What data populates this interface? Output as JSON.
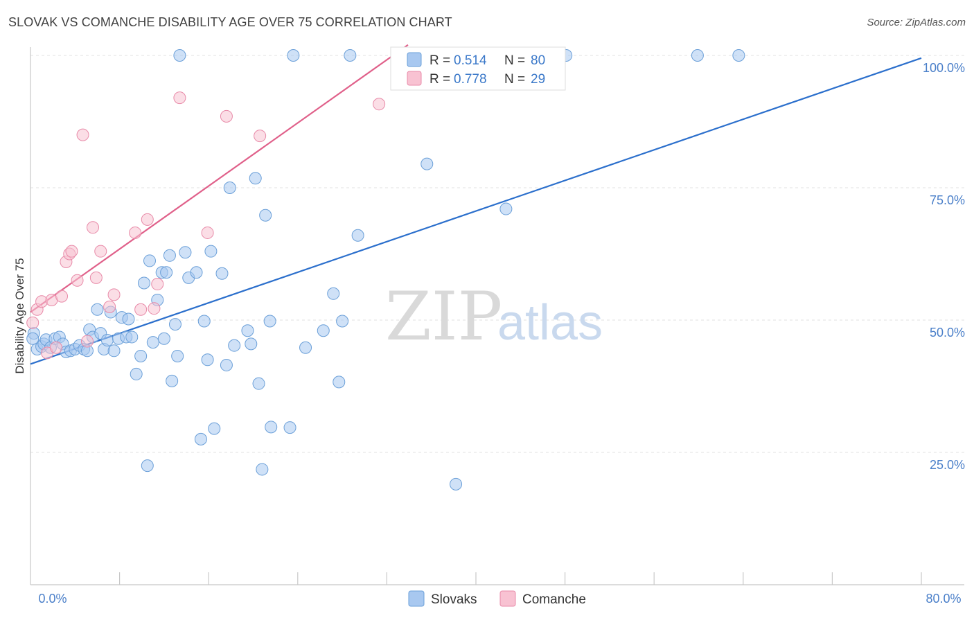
{
  "title": "SLOVAK VS COMANCHE DISABILITY AGE OVER 75 CORRELATION CHART",
  "source": "Source: ZipAtlas.com",
  "watermark": {
    "part1": "ZIP",
    "part2": "atlas"
  },
  "chart_data": {
    "type": "scatter",
    "title": "SLOVAK VS COMANCHE DISABILITY AGE OVER 75 CORRELATION CHART",
    "xlabel": "",
    "ylabel": "Disability Age Over 75",
    "xlim": [
      0,
      80
    ],
    "ylim": [
      2,
      102
    ],
    "x_tick_labels": [
      "0.0%",
      "80.0%"
    ],
    "y_ticks": [
      25,
      50,
      75,
      100
    ],
    "y_tick_labels": [
      "25.0%",
      "50.0%",
      "75.0%",
      "100.0%"
    ],
    "grid": true,
    "legend_placement": "top-center",
    "series": [
      {
        "name": "Slovaks",
        "color": "#a8c8f0",
        "stroke": "#6a9fd8",
        "line_color": "#2b6fcc",
        "r_label": "R =",
        "r_value": "0.514",
        "n_label": "N =",
        "n_value": "80",
        "trend": {
          "x": [
            0,
            80
          ],
          "y": [
            41.7,
            99.5
          ]
        },
        "points": [
          [
            0.3,
            47.5
          ],
          [
            0.6,
            44.5
          ],
          [
            1.0,
            45.0
          ],
          [
            1.2,
            45.5
          ],
          [
            1.4,
            46.3
          ],
          [
            1.8,
            44.8
          ],
          [
            2.2,
            46.5
          ],
          [
            2.6,
            46.8
          ],
          [
            2.9,
            45.5
          ],
          [
            3.2,
            44.0
          ],
          [
            3.6,
            44.2
          ],
          [
            4.0,
            44.5
          ],
          [
            4.4,
            45.2
          ],
          [
            4.8,
            44.5
          ],
          [
            5.1,
            44.2
          ],
          [
            5.3,
            48.2
          ],
          [
            5.6,
            46.8
          ],
          [
            6.0,
            52.0
          ],
          [
            6.3,
            47.5
          ],
          [
            6.6,
            44.5
          ],
          [
            6.9,
            46.2
          ],
          [
            7.2,
            51.5
          ],
          [
            7.5,
            44.2
          ],
          [
            7.9,
            46.5
          ],
          [
            8.2,
            50.5
          ],
          [
            8.6,
            46.8
          ],
          [
            8.8,
            50.2
          ],
          [
            9.1,
            46.8
          ],
          [
            9.5,
            39.8
          ],
          [
            9.9,
            43.2
          ],
          [
            10.2,
            57.0
          ],
          [
            10.5,
            22.5
          ],
          [
            10.7,
            61.2
          ],
          [
            11.0,
            45.8
          ],
          [
            11.4,
            53.8
          ],
          [
            11.8,
            59.0
          ],
          [
            12.0,
            46.5
          ],
          [
            12.2,
            59.0
          ],
          [
            12.5,
            62.2
          ],
          [
            12.7,
            38.5
          ],
          [
            13.0,
            49.2
          ],
          [
            13.2,
            43.2
          ],
          [
            13.4,
            100.0
          ],
          [
            13.9,
            62.8
          ],
          [
            14.2,
            58.0
          ],
          [
            14.9,
            59.0
          ],
          [
            15.3,
            27.5
          ],
          [
            15.6,
            49.8
          ],
          [
            15.9,
            42.5
          ],
          [
            16.2,
            63.0
          ],
          [
            16.5,
            29.5
          ],
          [
            17.2,
            58.8
          ],
          [
            17.6,
            41.5
          ],
          [
            17.9,
            75.0
          ],
          [
            18.3,
            45.2
          ],
          [
            19.5,
            48.0
          ],
          [
            19.8,
            45.5
          ],
          [
            20.2,
            76.8
          ],
          [
            20.5,
            38.0
          ],
          [
            20.8,
            21.8
          ],
          [
            21.1,
            69.8
          ],
          [
            21.5,
            49.8
          ],
          [
            21.6,
            29.8
          ],
          [
            23.3,
            29.7
          ],
          [
            23.6,
            100.0
          ],
          [
            24.7,
            44.8
          ],
          [
            26.3,
            48.0
          ],
          [
            27.2,
            55.0
          ],
          [
            27.7,
            38.3
          ],
          [
            28.0,
            49.8
          ],
          [
            28.7,
            100.0
          ],
          [
            29.4,
            66.0
          ],
          [
            35.6,
            79.5
          ],
          [
            38.2,
            19.0
          ],
          [
            42.7,
            71.0
          ],
          [
            45.4,
            100.0
          ],
          [
            48.1,
            100.0
          ],
          [
            59.9,
            100.0
          ],
          [
            63.6,
            100.0
          ],
          [
            0.2,
            46.5
          ]
        ]
      },
      {
        "name": "Comanche",
        "color": "#f8c2d2",
        "stroke": "#e88aa8",
        "line_color": "#e0608a",
        "r_label": "R =",
        "r_value": "0.778",
        "n_label": "N =",
        "n_value": "29",
        "trend": {
          "x": [
            0,
            33.9
          ],
          "y": [
            51.5,
            102
          ]
        },
        "points": [
          [
            0.2,
            49.5
          ],
          [
            0.6,
            52.0
          ],
          [
            1.0,
            53.5
          ],
          [
            1.5,
            43.8
          ],
          [
            1.9,
            53.8
          ],
          [
            2.3,
            44.8
          ],
          [
            2.8,
            54.5
          ],
          [
            3.2,
            61.0
          ],
          [
            3.5,
            62.5
          ],
          [
            3.7,
            63.0
          ],
          [
            4.2,
            57.5
          ],
          [
            4.7,
            85.0
          ],
          [
            5.1,
            46.0
          ],
          [
            5.6,
            67.5
          ],
          [
            5.9,
            58.0
          ],
          [
            6.3,
            63.0
          ],
          [
            7.1,
            52.5
          ],
          [
            7.5,
            54.8
          ],
          [
            9.4,
            66.5
          ],
          [
            9.9,
            52.0
          ],
          [
            10.5,
            69.0
          ],
          [
            11.1,
            52.2
          ],
          [
            11.4,
            56.8
          ],
          [
            13.4,
            92.0
          ],
          [
            15.9,
            66.5
          ],
          [
            17.6,
            88.5
          ],
          [
            20.6,
            84.8
          ],
          [
            31.3,
            90.8
          ],
          [
            33.6,
            100.0
          ]
        ]
      }
    ]
  }
}
